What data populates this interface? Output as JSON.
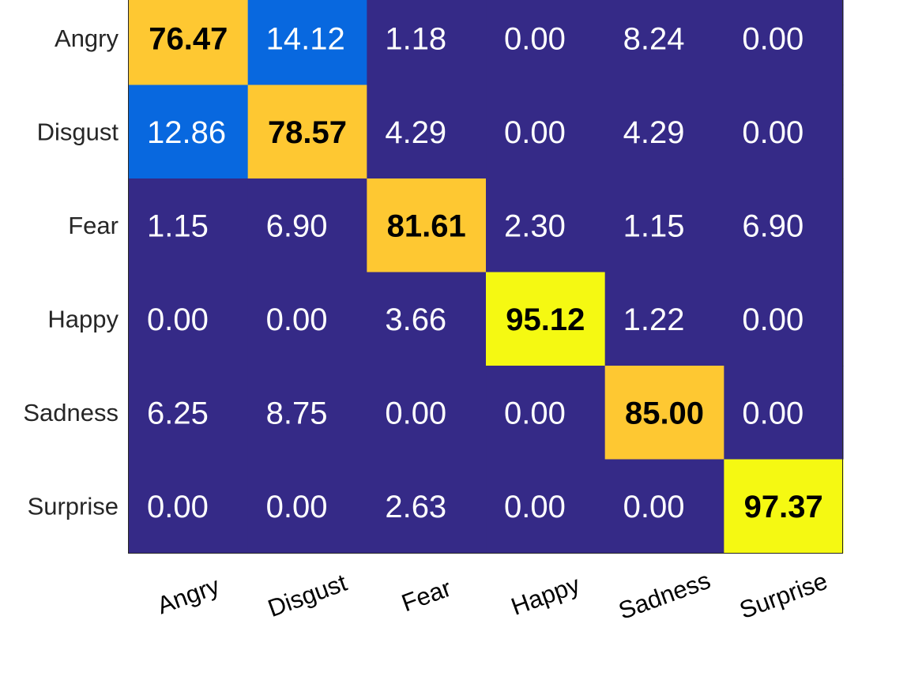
{
  "chart_data": {
    "type": "heatmap",
    "title": "",
    "xlabel": "",
    "ylabel": "",
    "row_labels": [
      "Angry",
      "Disgust",
      "Fear",
      "Happy",
      "Sadness",
      "Surprise"
    ],
    "col_labels": [
      "Angry",
      "Disgust",
      "Fear",
      "Happy",
      "Sadness",
      "Surprise"
    ],
    "values": [
      [
        76.47,
        14.12,
        1.18,
        0.0,
        8.24,
        0.0
      ],
      [
        12.86,
        78.57,
        4.29,
        0.0,
        4.29,
        0.0
      ],
      [
        1.15,
        6.9,
        81.61,
        2.3,
        1.15,
        6.9
      ],
      [
        0.0,
        0.0,
        3.66,
        95.12,
        1.22,
        0.0
      ],
      [
        6.25,
        8.75,
        0.0,
        0.0,
        85.0,
        0.0
      ],
      [
        0.0,
        0.0,
        2.63,
        0.0,
        0.0,
        97.37
      ]
    ],
    "value_format": "2 decimals",
    "diagonal_bold": true,
    "colormap": "parula",
    "colors": {
      "low": "#352A87",
      "mid": "#0868DF",
      "high": "#FEC832",
      "max": "#F5F912",
      "text_light": "#FFFFFF",
      "text_dark": "#000000"
    },
    "x_tick_rotation": "diagonal",
    "colorbar": false,
    "grid": false
  }
}
